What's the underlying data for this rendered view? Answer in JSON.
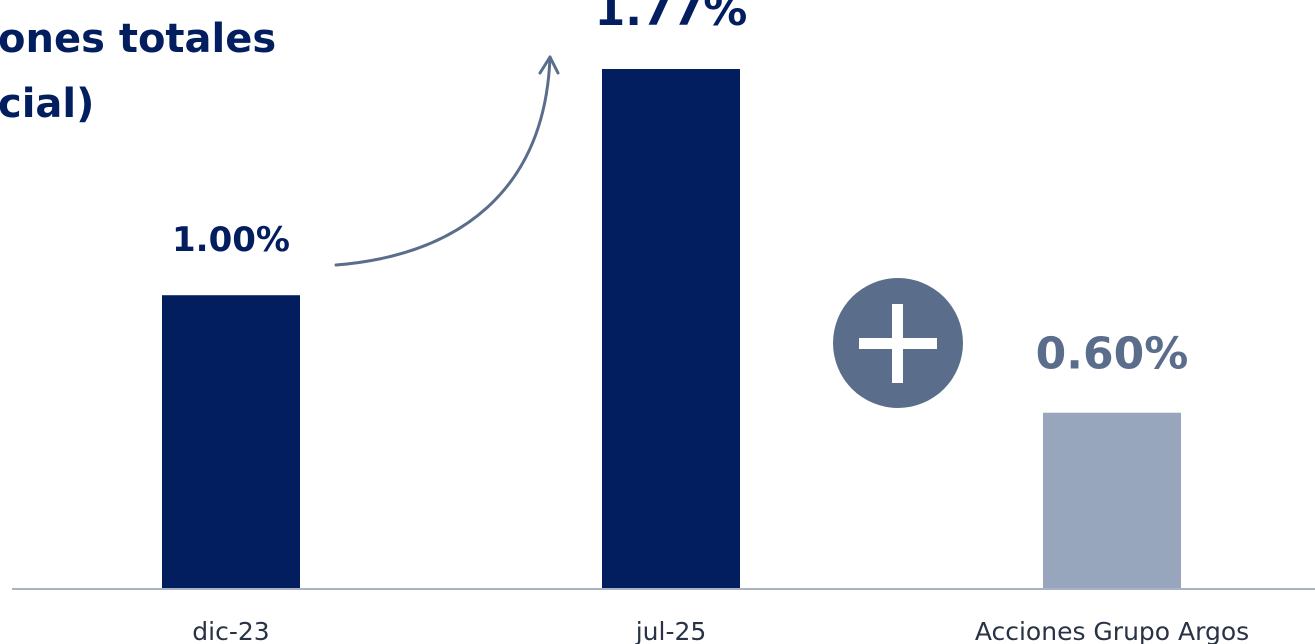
{
  "chart_data": {
    "type": "bar",
    "title_lines": [
      "ones totales",
      "cial)"
    ],
    "categories": [
      "dic-23",
      "jul-25",
      "Acciones Grupo Argos"
    ],
    "values": [
      1.0,
      1.77,
      0.6
    ],
    "value_labels": [
      "1.00%",
      "1.77%",
      "0.60%"
    ],
    "ylim": [
      0,
      1.77
    ],
    "grid": false,
    "legend": "none",
    "annotations": [
      {
        "type": "curved-arrow",
        "from": "dic-23",
        "to": "jul-25"
      },
      {
        "type": "plus-icon",
        "between": [
          "jul-25",
          "Acciones Grupo Argos"
        ]
      }
    ]
  },
  "colors": {
    "primary_bar": "#021e5f",
    "secondary_bar": "#97a6bd",
    "secondary_label": "#5a6e8c",
    "arrow": "#5a6e8c",
    "plus_circle": "#5a6e8c",
    "axis": "#a9b3c4",
    "category_text": "#2a3345"
  },
  "icons": {
    "arrow": "curved-arrow-icon",
    "plus": "plus-icon"
  }
}
